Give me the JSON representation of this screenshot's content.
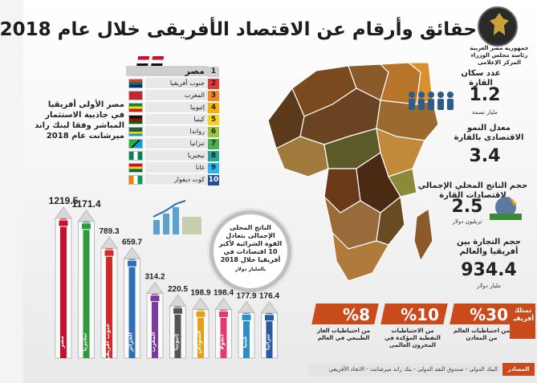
{
  "title": "حقائق وأرقام عن الاقتصاد الأفريقى خلال عام 2018",
  "logo": {
    "line1": "جمهورية مصر العربية",
    "line2": "رئاسة مجلس الوزراء",
    "line3": "المركز الإعلامى"
  },
  "ranking": [
    {
      "n": "1",
      "name": "مصر"
    },
    {
      "n": "2",
      "name": "جنوب أفريقيا"
    },
    {
      "n": "3",
      "name": "المغرب"
    },
    {
      "n": "4",
      "name": "إثيوبيا"
    },
    {
      "n": "5",
      "name": "كينيا"
    },
    {
      "n": "6",
      "name": "رواندا"
    },
    {
      "n": "7",
      "name": "تنزانيا"
    },
    {
      "n": "8",
      "name": "نيجيريا"
    },
    {
      "n": "9",
      "name": "غانا"
    },
    {
      "n": "10",
      "name": "كوت ديفوار"
    }
  ],
  "ranking_text": "مصر الأولى أفريقيا في جاذبية الاستثمار المباشر وفقا لبنك راند ميرشانت عام 2018",
  "stats": {
    "pop_label": "عدد سكان القارة",
    "pop_value": "1.2",
    "pop_unit": "مليار نسمة",
    "growth_label": "معدل النمو الاقتصادى بالقارة",
    "growth_value": "3.4",
    "gdp_label": "حجم الناتج المحلي الإجمالي لاقتصادات القارة",
    "gdp_value": "2.5",
    "gdp_unit": "تريليون دولار",
    "trade_label": "حجم التجارة بين أفريقيا والعالم",
    "trade_value": "934.4",
    "trade_unit": "مليار دولار"
  },
  "gear_text": "الناتج المحلى الإجمالى بتعادل القوة الشرائية لأكبر 10 اقتصادات في أفريقيا خلال 2018",
  "gear_unit": "بالمليار دولار",
  "bars": [
    {
      "name": "مصر",
      "value": "1219.5",
      "color": "#c8102e"
    },
    {
      "name": "نيجيريا",
      "value": "1171.4",
      "color": "#2f9a3a"
    },
    {
      "name": "جنوب أفريقيا",
      "value": "789.3",
      "color": "#cf2929"
    },
    {
      "name": "الجزائر",
      "value": "659.7",
      "color": "#2e6fb7"
    },
    {
      "name": "المغرب",
      "value": "314.2",
      "color": "#7a3aa0"
    },
    {
      "name": "إثيوبيا",
      "value": "220.5",
      "color": "#555555"
    },
    {
      "name": "السودان",
      "value": "198.9",
      "color": "#e0a21b"
    },
    {
      "name": "أنجولا",
      "value": "198.4",
      "color": "#e23c6e"
    },
    {
      "name": "كينيا",
      "value": "177.9",
      "color": "#2a8fc9"
    },
    {
      "name": "تنزانيا",
      "value": "176.4",
      "color": "#2c5aa0"
    }
  ],
  "reserves": [
    {
      "value": "%30",
      "label": "من احتياطيات العالم من المعادن",
      "color": "#c94a1b"
    },
    {
      "value": "%10",
      "label": "من الاحتياطيات النفطية المؤكدة في المخزون العالمى",
      "color": "#c94a1b"
    },
    {
      "value": "%8",
      "label": "من احتياطيات الغاز الطبيعي في العالم",
      "color": "#c94a1b"
    }
  ],
  "africa_badge": "تمتلك أفريقيا",
  "sources_label": "المصادر",
  "sources_text": "البنك الدولى - صندوق النقد الدولى - بنك راند ميرشانت - الاتحاد الأفريقي"
}
